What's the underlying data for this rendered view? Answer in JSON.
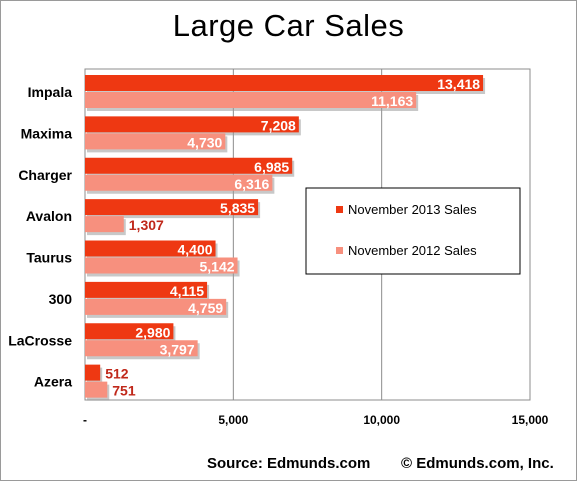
{
  "chart_data": {
    "type": "bar",
    "orientation": "horizontal",
    "title": "Large Car Sales",
    "categories": [
      "Impala",
      "Maxima",
      "Charger",
      "Avalon",
      "Taurus",
      "300",
      "LaCrosse",
      "Azera"
    ],
    "series": [
      {
        "name": "November 2013 Sales",
        "color": "#ee3812",
        "values": [
          13418,
          7208,
          6985,
          5835,
          4400,
          4115,
          2980,
          512
        ]
      },
      {
        "name": "November 2012 Sales",
        "color": "#f7907e",
        "values": [
          11163,
          4730,
          6316,
          1307,
          5142,
          4759,
          3797,
          751
        ]
      }
    ],
    "value_labels": {
      "November 2013 Sales": [
        "13,418",
        "7,208",
        "6,985",
        "5,835",
        "4,400",
        "4,115",
        "2,980",
        "512"
      ],
      "November 2012 Sales": [
        "11,163",
        "4,730",
        "6,316",
        "1,307",
        "5,142",
        "4,759",
        "3,797",
        "751"
      ]
    },
    "xlim": [
      0,
      15000
    ],
    "xticks": [
      0,
      5000,
      10000,
      15000
    ],
    "xtick_labels": [
      "-",
      "5,000",
      "10,000",
      "15,000"
    ],
    "grid": "vertical",
    "legend_position": "right",
    "source": "Source: Edmunds.com",
    "copyright": "© Edmunds.com, Inc."
  }
}
